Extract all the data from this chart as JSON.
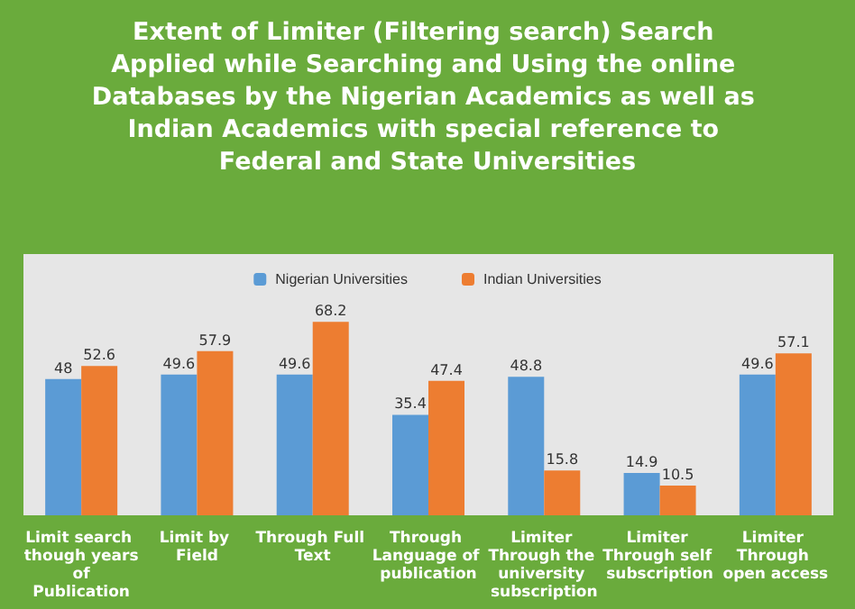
{
  "chart_data": {
    "type": "bar",
    "title": "Extent of Limiter (Filtering search) Search Applied while Searching and Using the online Databases by the Nigerian Academics as well as Indian Academics with special reference to Federal and State Universities",
    "categories": [
      "Limit search though years of Publication",
      "Limit by Field",
      "Through Full Text",
      "Through Language of publication",
      "Limiter Through the university subscription",
      "Limiter Through self subscription",
      "Limiter Through open access"
    ],
    "series": [
      {
        "name": "Nigerian Universities",
        "color": "#5b9bd5",
        "values": [
          48,
          49.6,
          49.6,
          35.4,
          48.8,
          14.9,
          49.6
        ]
      },
      {
        "name": "Indian Universities",
        "color": "#ed7d31",
        "values": [
          52.6,
          57.9,
          68.2,
          47.4,
          15.8,
          10.5,
          57.1
        ]
      }
    ],
    "tick_labels": "x",
    "data_labels": true,
    "legend": "top"
  }
}
